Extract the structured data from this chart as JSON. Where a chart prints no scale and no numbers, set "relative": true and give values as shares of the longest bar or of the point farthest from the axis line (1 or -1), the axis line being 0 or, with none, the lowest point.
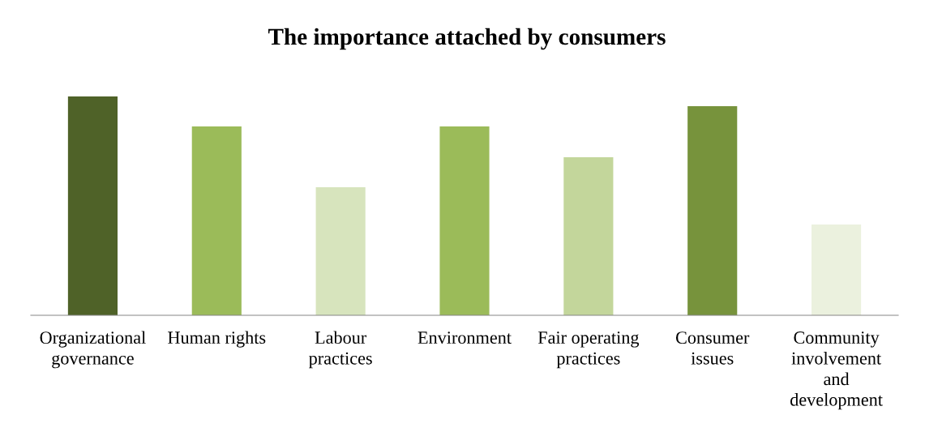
{
  "chart_data": {
    "type": "bar",
    "title": "The importance attached by consumers",
    "relative": true,
    "categories": [
      "Organizational governance",
      "Human rights",
      "Labour practices",
      "Environment",
      "Fair operating practices",
      "Consumer issues",
      "Community involvement and development"
    ],
    "values": [
      1,
      0.863,
      0.585,
      0.863,
      0.722,
      0.956,
      0.415
    ],
    "colors": [
      "#4f6228",
      "#9bbb59",
      "#d7e4bd",
      "#9bbb59",
      "#c3d69b",
      "#77933c",
      "#ebf1de"
    ],
    "grid": false,
    "legend": false
  }
}
